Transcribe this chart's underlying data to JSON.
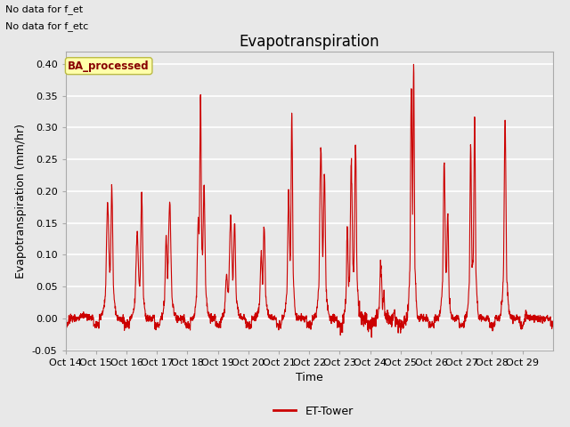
{
  "title": "Evapotranspiration",
  "ylabel": "Evapotranspiration (mm/hr)",
  "xlabel": "Time",
  "ylim": [
    -0.05,
    0.42
  ],
  "xlim": [
    0,
    16
  ],
  "xtick_labels": [
    "Oct 14",
    "Oct 15",
    "Oct 16",
    "Oct 17",
    "Oct 18",
    "Oct 19",
    "Oct 20",
    "Oct 21",
    "Oct 22",
    "Oct 23",
    "Oct 24",
    "Oct 25",
    "Oct 26",
    "Oct 27",
    "Oct 28",
    "Oct 29"
  ],
  "ytick_values": [
    -0.05,
    0.0,
    0.05,
    0.1,
    0.15,
    0.2,
    0.25,
    0.3,
    0.35,
    0.4
  ],
  "line_color": "#cc0000",
  "line_width": 0.8,
  "legend_label": "ET-Tower",
  "top_left_text1": "No data for f_et",
  "top_left_text2": "No data for f_etc",
  "box_label": "BA_processed",
  "bg_color": "#e8e8e8",
  "plot_bg_color": "#e8e8e8",
  "title_fontsize": 12,
  "label_fontsize": 9,
  "tick_fontsize": 8,
  "grid_color": "#ffffff",
  "grid_lw": 1.2
}
